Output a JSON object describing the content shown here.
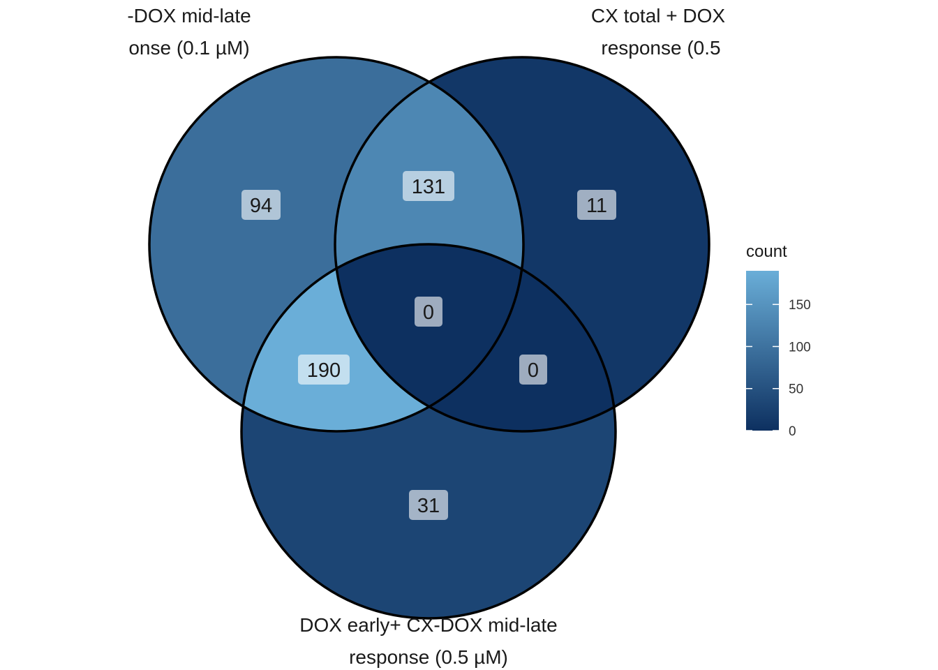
{
  "diagram": {
    "type": "venn",
    "sets": [
      {
        "id": "A",
        "label_lines": [
          "-DOX mid-late",
          "onse (0.1 µM)"
        ]
      },
      {
        "id": "B",
        "label_lines": [
          "CX total + DOX",
          "response (0.5"
        ]
      },
      {
        "id": "C",
        "label_lines": [
          "DOX early+ CX-DOX mid-late",
          "response (0.5 µM)"
        ]
      }
    ],
    "regions": {
      "A_only": 94,
      "AB": 131,
      "B_only": 11,
      "ABC": 0,
      "AC": 190,
      "BC": 0,
      "C_only": 31
    },
    "legend": {
      "title": "count",
      "ticks": [
        "150",
        "100",
        "50",
        "0"
      ],
      "tick_values": [
        150,
        100,
        50,
        0
      ],
      "min": 0,
      "max": 190,
      "color_low": "#0d3060",
      "color_high": "#6aaed8"
    }
  }
}
